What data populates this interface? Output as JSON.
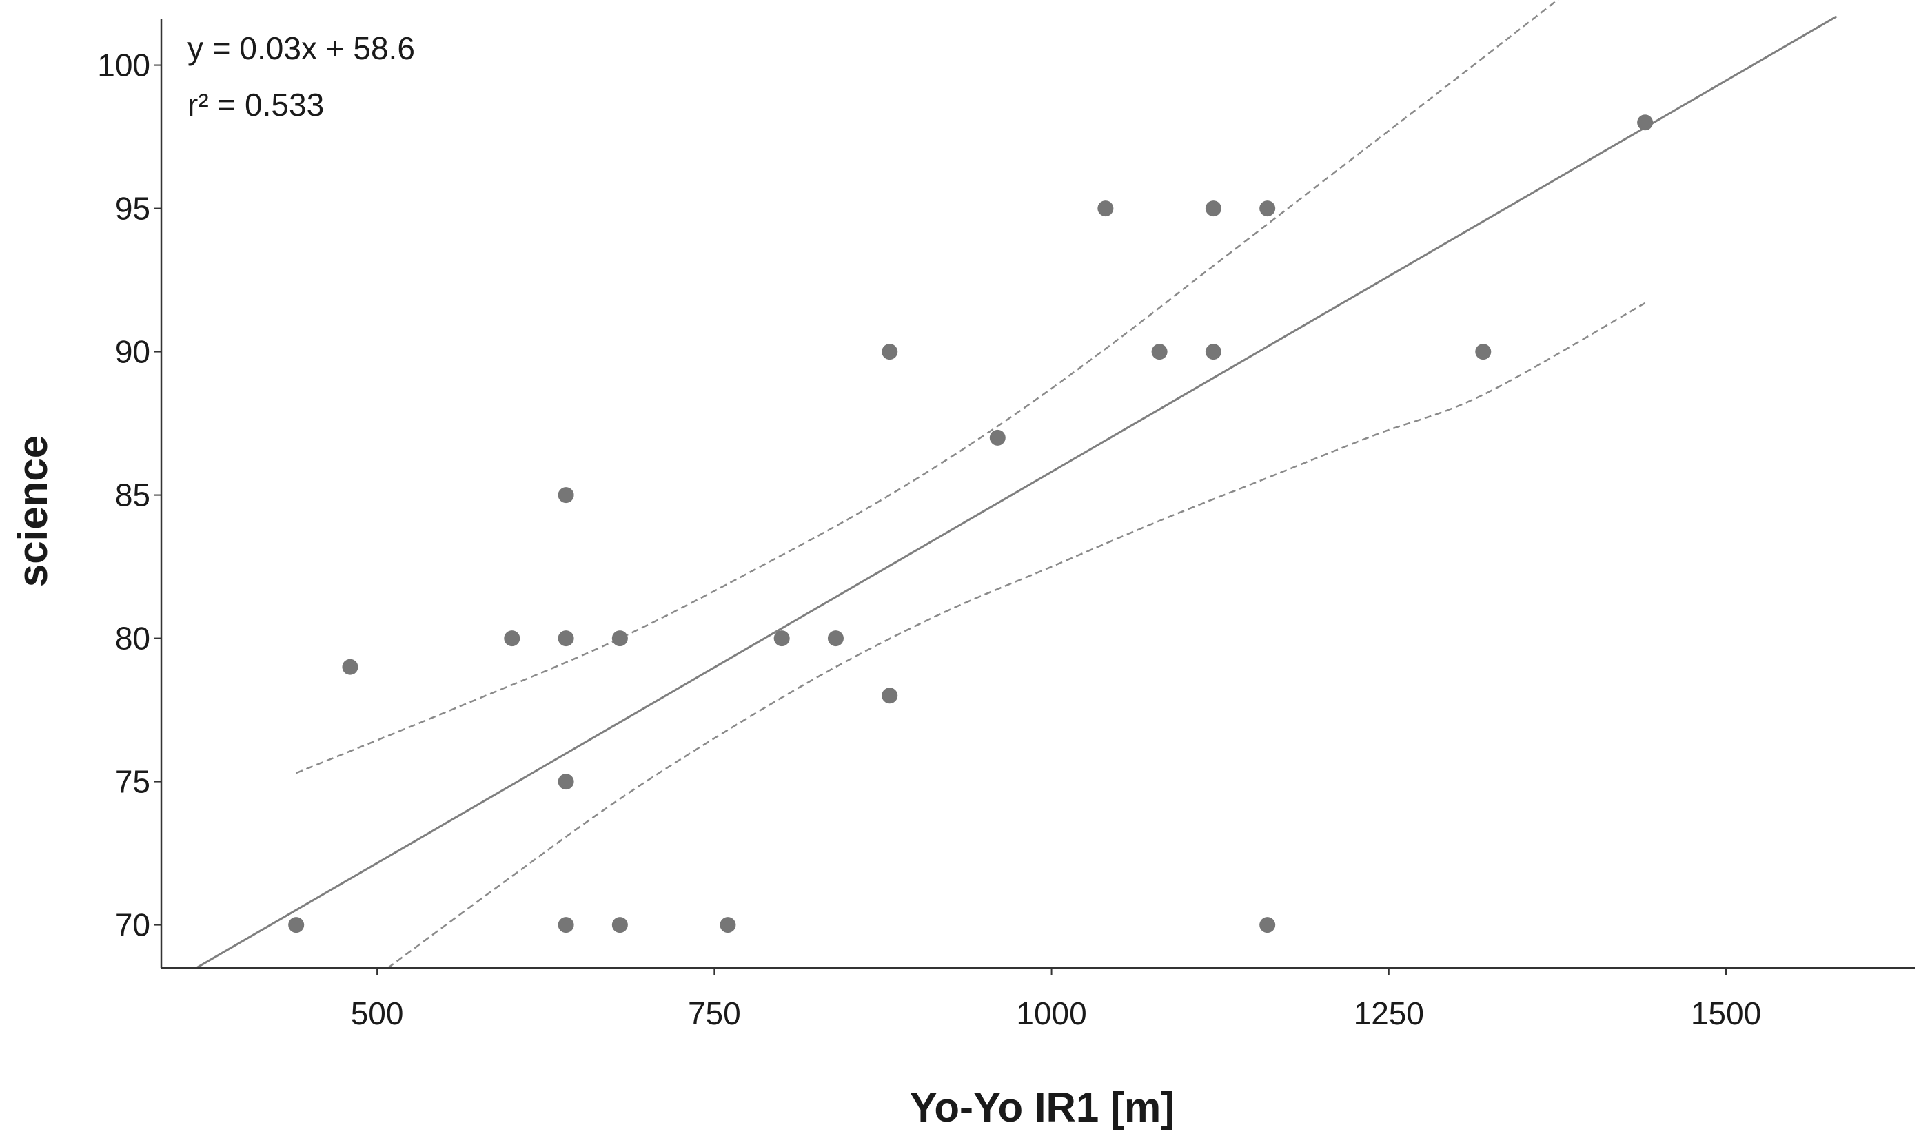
{
  "chart_data": {
    "type": "scatter",
    "title": "",
    "xlabel": "Yo-Yo IR1 [m]",
    "ylabel": "science",
    "xlim": [
      340,
      1640
    ],
    "ylim": [
      68.5,
      101.6
    ],
    "xticks": [
      500,
      750,
      1000,
      1250,
      1500
    ],
    "yticks": [
      70,
      75,
      80,
      85,
      90,
      95,
      100
    ],
    "xtick_labels": [
      "500",
      "750",
      "1000",
      "1250",
      "1500"
    ],
    "ytick_labels": [
      "70",
      "75",
      "80",
      "85",
      "90",
      "95",
      "100"
    ],
    "grid": false,
    "legend": "none",
    "points": [
      {
        "x": 440,
        "y": 70
      },
      {
        "x": 480,
        "y": 79
      },
      {
        "x": 600,
        "y": 80
      },
      {
        "x": 640,
        "y": 80
      },
      {
        "x": 640,
        "y": 85
      },
      {
        "x": 640,
        "y": 75
      },
      {
        "x": 640,
        "y": 70
      },
      {
        "x": 680,
        "y": 80
      },
      {
        "x": 680,
        "y": 70
      },
      {
        "x": 760,
        "y": 70
      },
      {
        "x": 800,
        "y": 80
      },
      {
        "x": 840,
        "y": 80
      },
      {
        "x": 880,
        "y": 90
      },
      {
        "x": 880,
        "y": 78
      },
      {
        "x": 960,
        "y": 87
      },
      {
        "x": 1040,
        "y": 95
      },
      {
        "x": 1080,
        "y": 90
      },
      {
        "x": 1120,
        "y": 95
      },
      {
        "x": 1120,
        "y": 90
      },
      {
        "x": 1160,
        "y": 95
      },
      {
        "x": 1160,
        "y": 70
      },
      {
        "x": 1320,
        "y": 90
      },
      {
        "x": 1440,
        "y": 98
      }
    ],
    "fit_line": {
      "x": [
        366,
        1582
      ],
      "y": [
        68.5,
        101.7
      ]
    },
    "ci_upper": {
      "x": [
        440,
        560,
        680,
        800,
        880,
        960,
        1040,
        1120,
        1200,
        1280,
        1384
      ],
      "y": [
        75.3,
        77.6,
        80.0,
        82.9,
        85.0,
        87.4,
        90.1,
        93.0,
        95.9,
        98.8,
        102.6
      ]
    },
    "ci_lower": {
      "x": [
        508,
        600,
        680,
        760,
        840,
        920,
        1000,
        1080,
        1160,
        1240,
        1320,
        1440
      ],
      "y": [
        68.5,
        71.7,
        74.4,
        76.8,
        79.0,
        80.9,
        82.5,
        84.1,
        85.6,
        87.1,
        88.5,
        91.7
      ]
    },
    "annotations": [
      "y = 0.03x + 58.6",
      "r² = 0.533"
    ]
  }
}
